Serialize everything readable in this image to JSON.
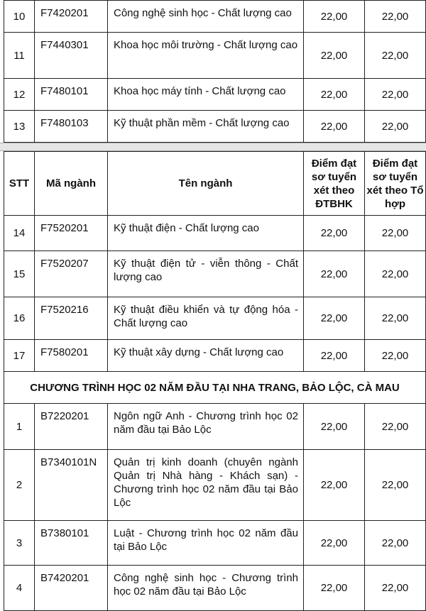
{
  "header": {
    "stt": "STT",
    "code": "Mã ngành",
    "name": "Tên ngành",
    "score1": "Điểm đạt sơ tuyển xét theo ĐTBHK",
    "score2": "Điểm đạt sơ tuyển xét theo Tổ hợp"
  },
  "table1": [
    {
      "stt": "10",
      "code": "F7420201",
      "name": "Công nghệ sinh học - Chất lượng cao",
      "s1": "22,00",
      "s2": "22,00"
    },
    {
      "stt": "11",
      "code": "F7440301",
      "name": "Khoa học môi trường - Chất lượng cao",
      "s1": "22,00",
      "s2": "22,00"
    },
    {
      "stt": "12",
      "code": "F7480101",
      "name": "Khoa học máy tính - Chất lượng cao",
      "s1": "22,00",
      "s2": "22,00"
    },
    {
      "stt": "13",
      "code": "F7480103",
      "name": "Kỹ thuật phần mềm - Chất lượng cao",
      "s1": "22,00",
      "s2": "22,00"
    }
  ],
  "table2": [
    {
      "stt": "14",
      "code": "F7520201",
      "name": "Kỹ thuật điện - Chất lượng cao",
      "s1": "22,00",
      "s2": "22,00"
    },
    {
      "stt": "15",
      "code": "F7520207",
      "name": "Kỹ thuật điện tử - viễn thông - Chất lượng cao",
      "s1": "22,00",
      "s2": "22,00"
    },
    {
      "stt": "16",
      "code": "F7520216",
      "name": "Kỹ thuật điều khiển và tự động hóa - Chất lượng cao",
      "s1": "22,00",
      "s2": "22,00"
    },
    {
      "stt": "17",
      "code": "F7580201",
      "name": "Kỹ thuật  xây dựng - Chất lượng cao",
      "s1": "22,00",
      "s2": "22,00"
    }
  ],
  "section": "CHƯƠNG TRÌNH HỌC 02 NĂM ĐẦU TẠI NHA TRANG, BẢO LỘC, CÀ MAU",
  "table3": [
    {
      "stt": "1",
      "code": "B7220201",
      "name": "Ngôn ngữ Anh - Chương trình học 02 năm đầu tại Bảo Lộc",
      "s1": "22,00",
      "s2": "22,00"
    },
    {
      "stt": "2",
      "code": "B7340101N",
      "name": "Quản trị kinh doanh (chuyên ngành Quản trị Nhà hàng - Khách sạn) - Chương trình học 02 năm đầu tại Bảo Lộc",
      "s1": "22,00",
      "s2": "22,00"
    },
    {
      "stt": "3",
      "code": "B7380101",
      "name": "Luật - Chương trình học 02 năm đầu tại Bảo Lộc",
      "s1": "22,00",
      "s2": "22,00"
    },
    {
      "stt": "4",
      "code": "B7420201",
      "name": "Công nghệ sinh học - Chương trình học 02 năm đầu tại  Bảo Lộc",
      "s1": "22,00",
      "s2": "22,00"
    }
  ]
}
